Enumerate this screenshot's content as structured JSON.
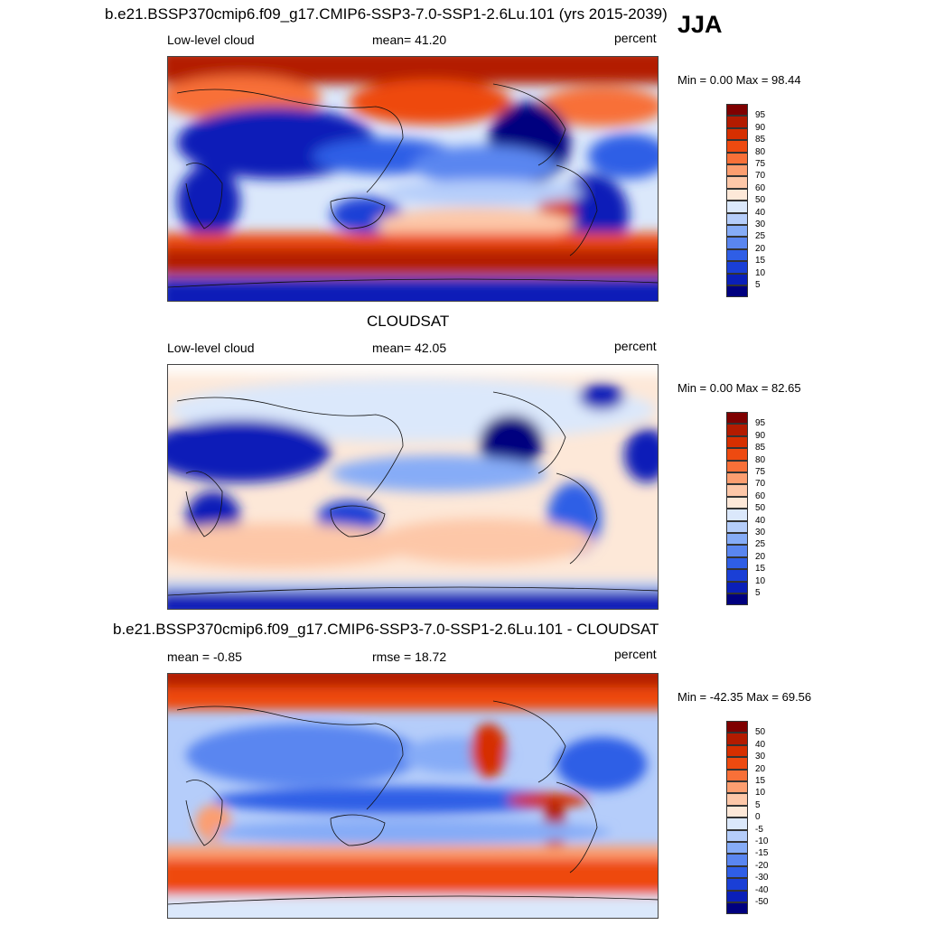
{
  "season": "JJA",
  "panels": [
    {
      "title": "b.e21.BSSP370cmip6.f09_g17.CMIP6-SSP3-7.0-SSP1-2.6Lu.101 (yrs 2015-2039)",
      "left_label": "Low-level cloud",
      "center_label": "mean=  41.20",
      "right_label": "percent",
      "minmax": "Min =   0.00 Max =  98.44"
    },
    {
      "title": "CLOUDSAT",
      "left_label": "Low-level cloud",
      "center_label": "mean=  42.05",
      "right_label": "percent",
      "minmax": "Min =   0.00 Max =  82.65"
    },
    {
      "title": "b.e21.BSSP370cmip6.f09_g17.CMIP6-SSP3-7.0-SSP1-2.6Lu.101 - CLOUDSAT",
      "left_label": "mean =  -0.85",
      "center_label": "rmse =  18.72",
      "right_label": "percent",
      "minmax": "Min = -42.35 Max =  69.56"
    }
  ],
  "colorbars": {
    "abs": {
      "labels": [
        "95",
        "90",
        "85",
        "80",
        "75",
        "70",
        "60",
        "50",
        "40",
        "30",
        "25",
        "20",
        "15",
        "10",
        "5"
      ],
      "colors": [
        "#7f0000",
        "#b31b00",
        "#d62f00",
        "#ee4a10",
        "#f87038",
        "#fc9e70",
        "#fdc7a8",
        "#fde8d8",
        "#dbe8fb",
        "#b5cdfa",
        "#86acf7",
        "#5a86f0",
        "#2f5ee6",
        "#1a3fd6",
        "#0a1fb8",
        "#00007f"
      ]
    },
    "diff": {
      "labels": [
        "50",
        "40",
        "30",
        "20",
        "15",
        "10",
        "5",
        "0",
        "-5",
        "-10",
        "-15",
        "-20",
        "-30",
        "-40",
        "-50"
      ],
      "colors": [
        "#7f0000",
        "#b31b00",
        "#d62f00",
        "#ee4a10",
        "#f87038",
        "#fc9e70",
        "#fdc7a8",
        "#fde8d8",
        "#dbe8fb",
        "#b5cdfa",
        "#86acf7",
        "#5a86f0",
        "#2f5ee6",
        "#1a3fd6",
        "#0a1fb8",
        "#00007f"
      ]
    }
  },
  "chart_data": [
    {
      "type": "heatmap",
      "title": "b.e21.BSSP370cmip6.f09_g17.CMIP6-SSP3-7.0-SSP1-2.6Lu.101 (yrs 2015-2039)",
      "variable": "Low-level cloud",
      "units": "percent",
      "mean": 41.2,
      "min": 0.0,
      "max": 98.44,
      "contour_levels": [
        5,
        10,
        15,
        20,
        25,
        30,
        40,
        50,
        60,
        70,
        75,
        80,
        85,
        90,
        95
      ]
    },
    {
      "type": "heatmap",
      "title": "CLOUDSAT",
      "variable": "Low-level cloud",
      "units": "percent",
      "mean": 42.05,
      "min": 0.0,
      "max": 82.65,
      "contour_levels": [
        5,
        10,
        15,
        20,
        25,
        30,
        40,
        50,
        60,
        70,
        75,
        80,
        85,
        90,
        95
      ]
    },
    {
      "type": "heatmap",
      "title": "b.e21.BSSP370cmip6.f09_g17.CMIP6-SSP3-7.0-SSP1-2.6Lu.101 - CLOUDSAT",
      "units": "percent",
      "mean": -0.85,
      "rmse": 18.72,
      "min": -42.35,
      "max": 69.56,
      "contour_levels": [
        -50,
        -40,
        -30,
        -20,
        -15,
        -10,
        -5,
        0,
        5,
        10,
        15,
        20,
        30,
        40,
        50
      ]
    }
  ]
}
